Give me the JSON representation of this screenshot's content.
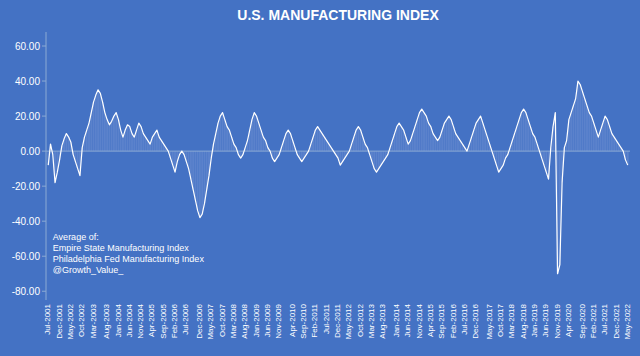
{
  "chart_data": {
    "type": "bar",
    "title": "U.S. MANUFACTURING INDEX",
    "categories": [
      "Jul-2001",
      null,
      null,
      null,
      null,
      "Dec-2001",
      null,
      null,
      null,
      null,
      "May-2002",
      null,
      null,
      null,
      null,
      "Oct-2002",
      null,
      null,
      null,
      null,
      "Mar-2003",
      null,
      null,
      null,
      null,
      null,
      "Aug-2003",
      null,
      null,
      null,
      null,
      "Jan-2004",
      null,
      null,
      null,
      null,
      "Jun-2004",
      null,
      null,
      null,
      null,
      "Nov-2004",
      null,
      null,
      null,
      null,
      "Apr-2005",
      null,
      null,
      null,
      null,
      "Sep-2005",
      null,
      null,
      null,
      null,
      "Feb-2006",
      null,
      null,
      null,
      null,
      "Jul-2006",
      null,
      null,
      null,
      null,
      null,
      "Dec-2006",
      null,
      null,
      null,
      null,
      "May-2007",
      null,
      null,
      null,
      null,
      "Oct-2007",
      null,
      null,
      null,
      null,
      "Mar-2008",
      null,
      null,
      null,
      null,
      "Aug-2008",
      null,
      null,
      null,
      null,
      "Jan-2009",
      null,
      null,
      null,
      null,
      "Jun-2009",
      null,
      null,
      null,
      null,
      "Nov-2009",
      null,
      null,
      null,
      null,
      null,
      "Apr-2010",
      null,
      null,
      null,
      null,
      "Sep-2010",
      null,
      null,
      null,
      null,
      "Feb-2011",
      null,
      null,
      null,
      null,
      "Jul-2011",
      null,
      null,
      null,
      null,
      "Dec-2011",
      null,
      null,
      null,
      null,
      "May-2012",
      null,
      null,
      null,
      null,
      "Oct-2012",
      null,
      null,
      null,
      null,
      "Mar-2013",
      null,
      null,
      null,
      null,
      "Aug-2013",
      null,
      null,
      null,
      null,
      null,
      "Jan-2014",
      null,
      null,
      null,
      null,
      "Jun-2014",
      null,
      null,
      null,
      null,
      "Nov-2014",
      null,
      null,
      null,
      null,
      "Apr-2015",
      null,
      null,
      null,
      null,
      "Sep-2015",
      null,
      null,
      null,
      null,
      "Feb-2016",
      null,
      null,
      null,
      null,
      "Jul-2016",
      null,
      null,
      null,
      null,
      "Dec-2016",
      null,
      null,
      null,
      null,
      null,
      "May-2017",
      null,
      null,
      null,
      null,
      "Oct-2017",
      null,
      null,
      null,
      null,
      "Mar-2018",
      null,
      null,
      null,
      null,
      "Aug-2018",
      null,
      null,
      null,
      null,
      "Jan-2019",
      null,
      null,
      null,
      null,
      "Jun-2019",
      null,
      null,
      null,
      null,
      "Nov-2019",
      null,
      null,
      null,
      null,
      "Apr-2020",
      null,
      null,
      null,
      null,
      null,
      "Sep-2020",
      null,
      null,
      null,
      null,
      "Feb-2021",
      null,
      null,
      null,
      null,
      "Jul-2021",
      null,
      null,
      null,
      null,
      "Dec-2021",
      null,
      null,
      null,
      null,
      "May-2022"
    ],
    "series": [
      {
        "type": "bar",
        "color": "#5B82CC",
        "values": [
          -8.0,
          4.0,
          -2.0,
          -18.0,
          -12.0,
          -5.0,
          3.0,
          7.0,
          10.0,
          8.0,
          5.0,
          -2.0,
          -6.0,
          -10.0,
          -14.0,
          2.0,
          8.0,
          12.0,
          16.0,
          22.0,
          28.0,
          32.0,
          35.0,
          33.0,
          28.0,
          22.0,
          18.0,
          15.0,
          17.0,
          20.0,
          22.0,
          18.0,
          12.0,
          8.0,
          12.0,
          15.0,
          14.0,
          10.0,
          8.0,
          12.0,
          16.0,
          14.0,
          10.0,
          8.0,
          6.0,
          4.0,
          8.0,
          10.0,
          12.0,
          8.0,
          6.0,
          4.0,
          2.0,
          0.0,
          -4.0,
          -8.0,
          -12.0,
          -6.0,
          -2.0,
          0.0,
          -2.0,
          -6.0,
          -10.0,
          -16.0,
          -22.0,
          -28.0,
          -34.0,
          -38.0,
          -36.0,
          -30.0,
          -22.0,
          -14.0,
          -4.0,
          4.0,
          10.0,
          16.0,
          20.0,
          22.0,
          18.0,
          14.0,
          12.0,
          8.0,
          4.0,
          2.0,
          -2.0,
          -4.0,
          -2.0,
          2.0,
          6.0,
          12.0,
          18.0,
          22.0,
          20.0,
          16.0,
          12.0,
          8.0,
          6.0,
          2.0,
          0.0,
          -4.0,
          -6.0,
          -4.0,
          -2.0,
          2.0,
          6.0,
          10.0,
          12.0,
          10.0,
          6.0,
          2.0,
          -2.0,
          -4.0,
          -6.0,
          -4.0,
          -2.0,
          0.0,
          4.0,
          8.0,
          12.0,
          14.0,
          12.0,
          10.0,
          8.0,
          6.0,
          4.0,
          2.0,
          0.0,
          -2.0,
          -4.0,
          -8.0,
          -6.0,
          -4.0,
          -2.0,
          0.0,
          4.0,
          8.0,
          12.0,
          14.0,
          12.0,
          8.0,
          4.0,
          2.0,
          -2.0,
          -6.0,
          -10.0,
          -12.0,
          -10.0,
          -8.0,
          -6.0,
          -4.0,
          -2.0,
          2.0,
          6.0,
          10.0,
          14.0,
          16.0,
          14.0,
          12.0,
          8.0,
          4.0,
          6.0,
          10.0,
          14.0,
          18.0,
          22.0,
          24.0,
          22.0,
          20.0,
          16.0,
          14.0,
          10.0,
          8.0,
          6.0,
          8.0,
          12.0,
          16.0,
          18.0,
          20.0,
          18.0,
          14.0,
          10.0,
          8.0,
          6.0,
          4.0,
          2.0,
          0.0,
          4.0,
          8.0,
          12.0,
          16.0,
          18.0,
          20.0,
          16.0,
          12.0,
          8.0,
          4.0,
          0.0,
          -4.0,
          -8.0,
          -12.0,
          -10.0,
          -8.0,
          -4.0,
          -2.0,
          2.0,
          6.0,
          10.0,
          14.0,
          18.0,
          22.0,
          24.0,
          22.0,
          18.0,
          14.0,
          10.0,
          8.0,
          4.0,
          0.0,
          -4.0,
          -8.0,
          -12.0,
          -16.0,
          2.0,
          14.0,
          22.0,
          -70.0,
          -65.0,
          -18.0,
          2.0,
          6.0,
          18.0,
          22.0,
          26.0,
          30.0,
          40.0,
          38.0,
          34.0,
          30.0,
          26.0,
          22.0,
          20.0,
          16.0,
          12.0,
          8.0,
          12.0,
          16.0,
          20.0,
          18.0,
          14.0,
          10.0,
          8.0,
          6.0,
          4.0,
          2.0,
          0.0,
          -5.0,
          -8.0
        ]
      },
      {
        "type": "line",
        "color": "#FFFFFF",
        "values": [
          -8.0,
          4.0,
          -2.0,
          -18.0,
          -12.0,
          -5.0,
          3.0,
          7.0,
          10.0,
          8.0,
          5.0,
          -2.0,
          -6.0,
          -10.0,
          -14.0,
          2.0,
          8.0,
          12.0,
          16.0,
          22.0,
          28.0,
          32.0,
          35.0,
          33.0,
          28.0,
          22.0,
          18.0,
          15.0,
          17.0,
          20.0,
          22.0,
          18.0,
          12.0,
          8.0,
          12.0,
          15.0,
          14.0,
          10.0,
          8.0,
          12.0,
          16.0,
          14.0,
          10.0,
          8.0,
          6.0,
          4.0,
          8.0,
          10.0,
          12.0,
          8.0,
          6.0,
          4.0,
          2.0,
          0.0,
          -4.0,
          -8.0,
          -12.0,
          -6.0,
          -2.0,
          0.0,
          -2.0,
          -6.0,
          -10.0,
          -16.0,
          -22.0,
          -28.0,
          -34.0,
          -38.0,
          -36.0,
          -30.0,
          -22.0,
          -14.0,
          -4.0,
          4.0,
          10.0,
          16.0,
          20.0,
          22.0,
          18.0,
          14.0,
          12.0,
          8.0,
          4.0,
          2.0,
          -2.0,
          -4.0,
          -2.0,
          2.0,
          6.0,
          12.0,
          18.0,
          22.0,
          20.0,
          16.0,
          12.0,
          8.0,
          6.0,
          2.0,
          0.0,
          -4.0,
          -6.0,
          -4.0,
          -2.0,
          2.0,
          6.0,
          10.0,
          12.0,
          10.0,
          6.0,
          2.0,
          -2.0,
          -4.0,
          -6.0,
          -4.0,
          -2.0,
          0.0,
          4.0,
          8.0,
          12.0,
          14.0,
          12.0,
          10.0,
          8.0,
          6.0,
          4.0,
          2.0,
          0.0,
          -2.0,
          -4.0,
          -8.0,
          -6.0,
          -4.0,
          -2.0,
          0.0,
          4.0,
          8.0,
          12.0,
          14.0,
          12.0,
          8.0,
          4.0,
          2.0,
          -2.0,
          -6.0,
          -10.0,
          -12.0,
          -10.0,
          -8.0,
          -6.0,
          -4.0,
          -2.0,
          2.0,
          6.0,
          10.0,
          14.0,
          16.0,
          14.0,
          12.0,
          8.0,
          4.0,
          6.0,
          10.0,
          14.0,
          18.0,
          22.0,
          24.0,
          22.0,
          20.0,
          16.0,
          14.0,
          10.0,
          8.0,
          6.0,
          8.0,
          12.0,
          16.0,
          18.0,
          20.0,
          18.0,
          14.0,
          10.0,
          8.0,
          6.0,
          4.0,
          2.0,
          0.0,
          4.0,
          8.0,
          12.0,
          16.0,
          18.0,
          20.0,
          16.0,
          12.0,
          8.0,
          4.0,
          0.0,
          -4.0,
          -8.0,
          -12.0,
          -10.0,
          -8.0,
          -4.0,
          -2.0,
          2.0,
          6.0,
          10.0,
          14.0,
          18.0,
          22.0,
          24.0,
          22.0,
          18.0,
          14.0,
          10.0,
          8.0,
          4.0,
          0.0,
          -4.0,
          -8.0,
          -12.0,
          -16.0,
          2.0,
          14.0,
          22.0,
          -70.0,
          -65.0,
          -18.0,
          2.0,
          6.0,
          18.0,
          22.0,
          26.0,
          30.0,
          40.0,
          38.0,
          34.0,
          30.0,
          26.0,
          22.0,
          20.0,
          16.0,
          12.0,
          8.0,
          12.0,
          16.0,
          20.0,
          18.0,
          14.0,
          10.0,
          8.0,
          6.0,
          4.0,
          2.0,
          0.0,
          -5.0,
          -8.0
        ]
      }
    ],
    "ylim": [
      -85,
      68
    ],
    "yticks": [
      {
        "value": 60,
        "label": "60.00"
      },
      {
        "value": 40,
        "label": "40.00"
      },
      {
        "value": 20,
        "label": "20.00"
      },
      {
        "value": 0,
        "label": "0.00"
      },
      {
        "value": -20,
        "label": "-20.00"
      },
      {
        "value": -40,
        "label": "-40.00"
      },
      {
        "value": -60,
        "label": "-60.00"
      },
      {
        "value": -80,
        "label": "-80.00"
      }
    ],
    "annotations": [
      "Average of:",
      "Empire State Manufacturing Index",
      "Philadelphia Fed Manufacturing Index",
      "@Growth_Value_"
    ],
    "grid": false
  }
}
